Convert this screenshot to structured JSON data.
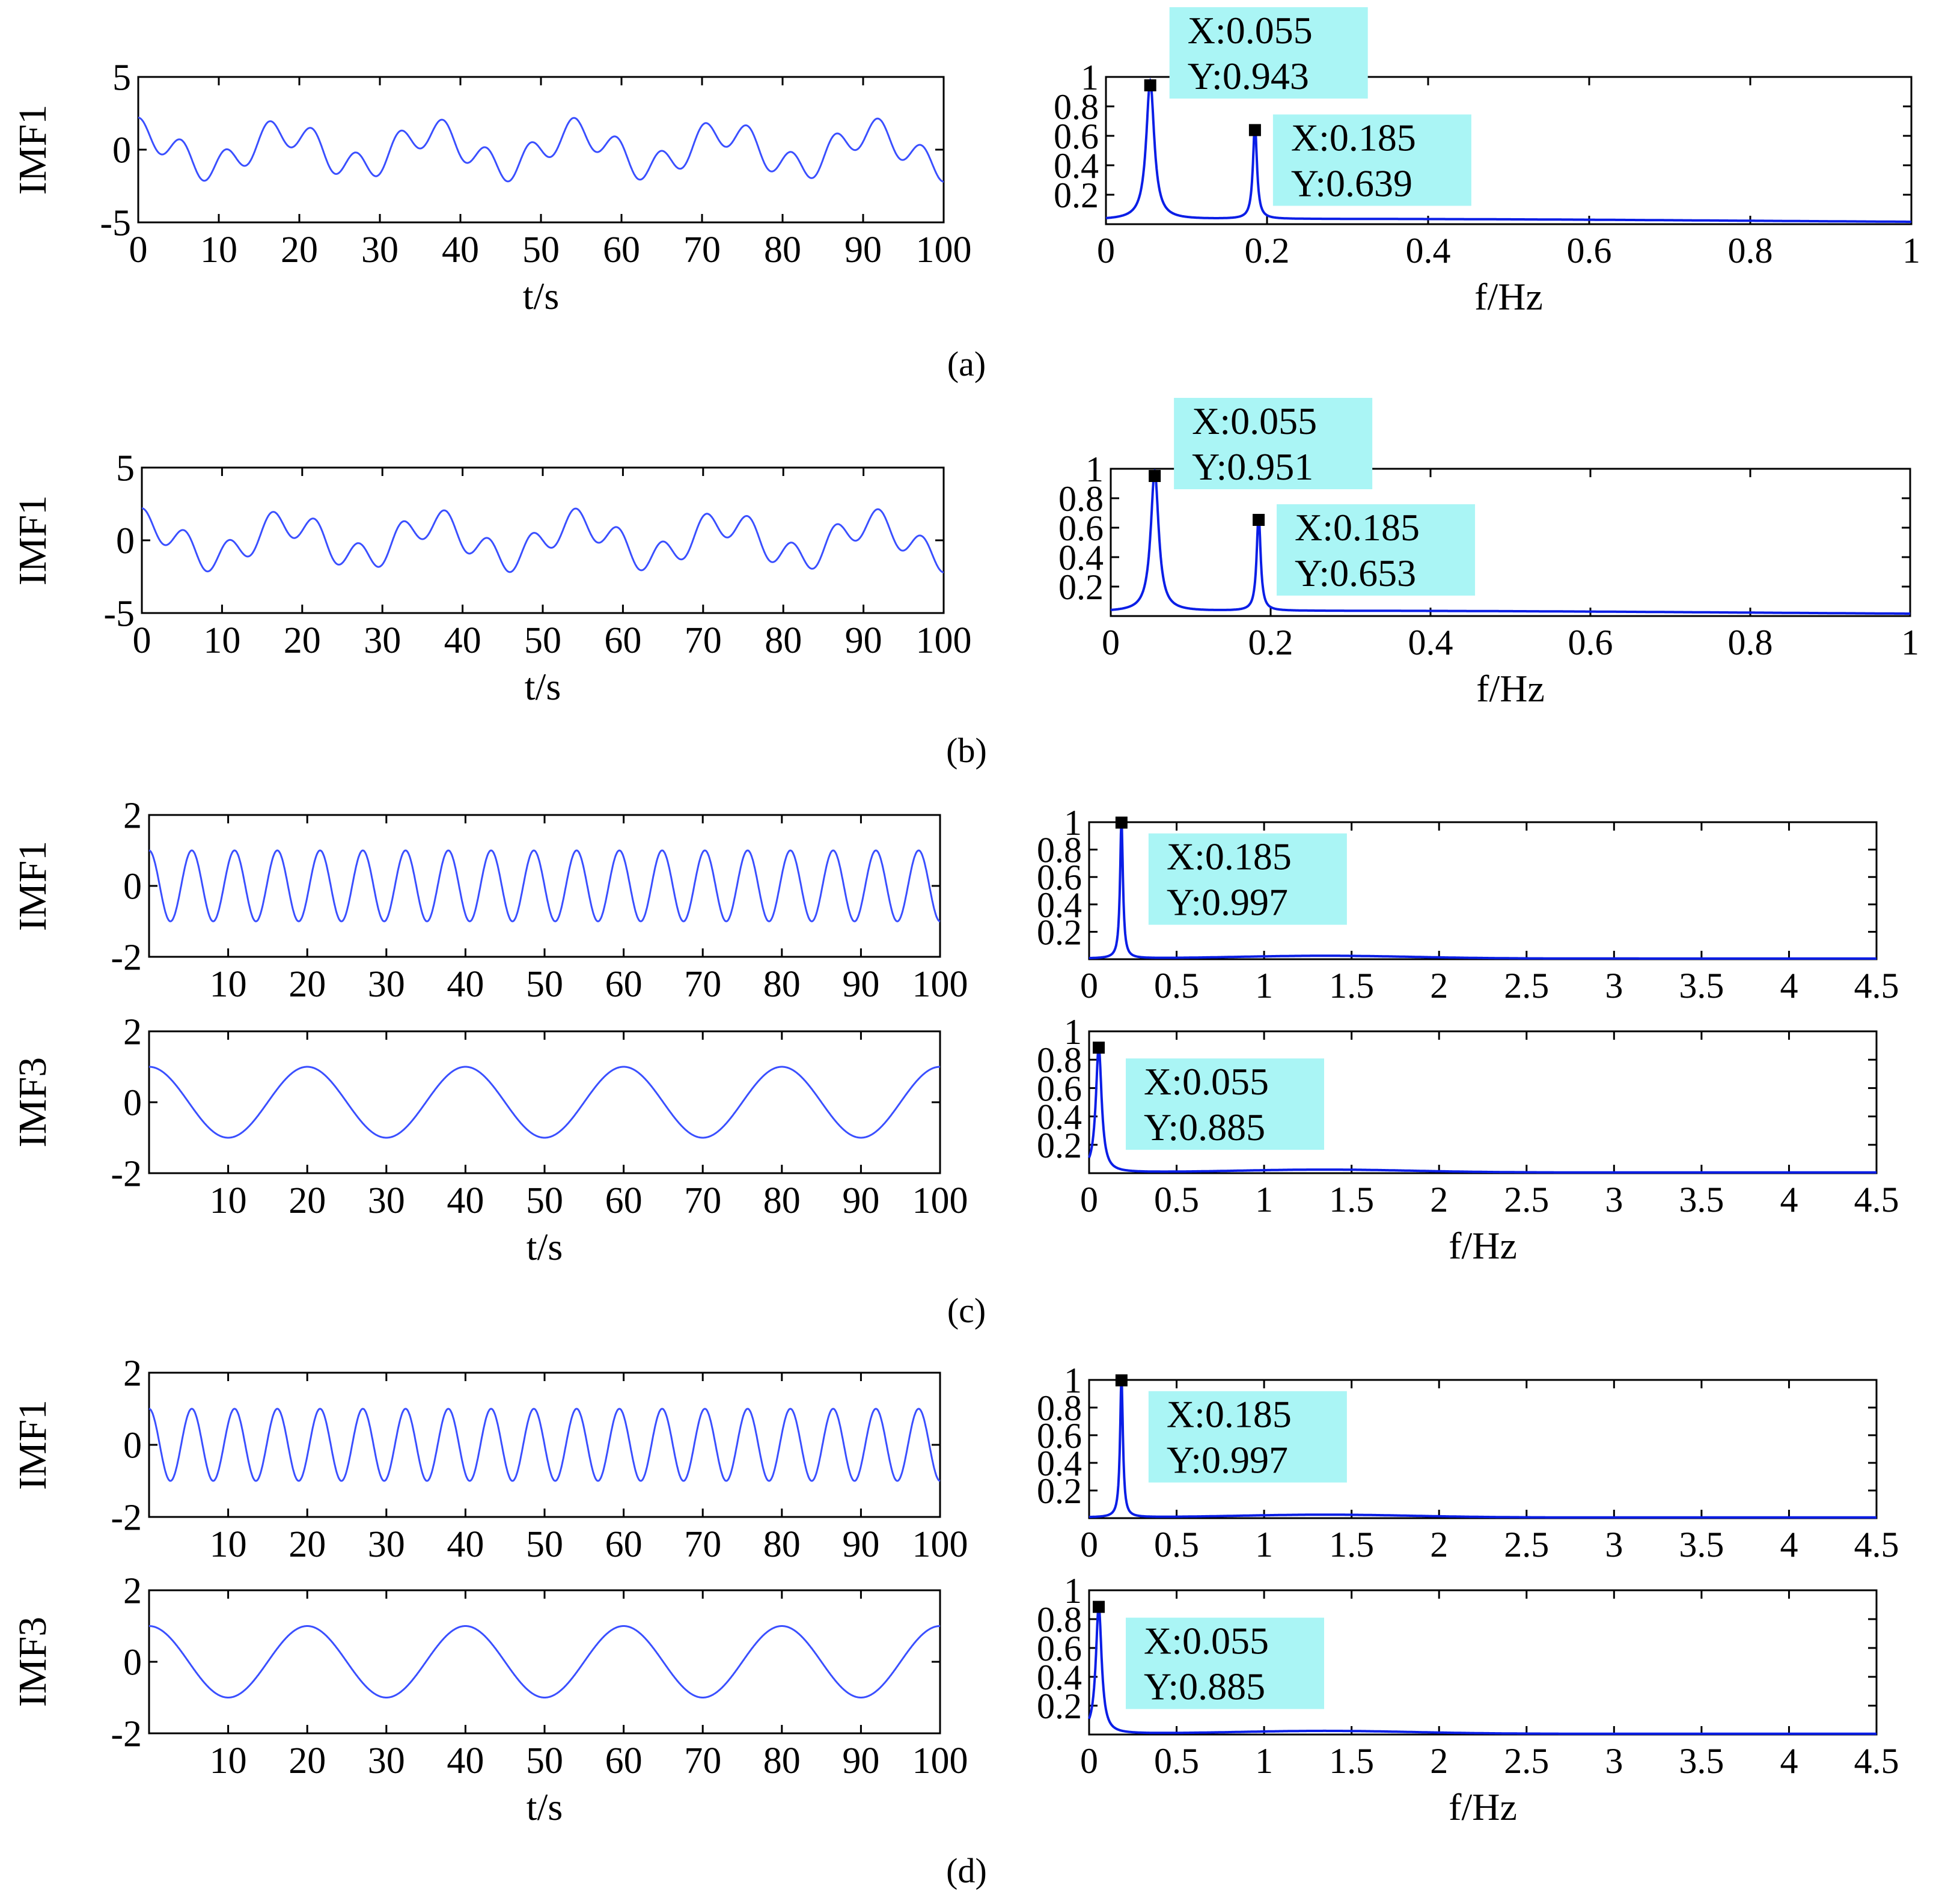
{
  "figure": {
    "panel_labels": [
      "(a)",
      "(b)",
      "(c)",
      "(d)"
    ]
  },
  "colors": {
    "signal": "#3a4fff",
    "spectrum": "#0a1ee6",
    "datatip_bg": "#aaf5f5",
    "datatip_marker": "#000000",
    "axis": "#000000"
  },
  "chart_data": [
    {
      "id": "a-time",
      "panel": "(a)",
      "type": "line",
      "ylabel": "IMF1",
      "xlabel": "t/s",
      "xlim": [
        0,
        100
      ],
      "ylim": [
        -5,
        5
      ],
      "xticks": [
        0,
        10,
        20,
        30,
        40,
        50,
        60,
        70,
        80,
        90,
        100
      ],
      "xtick_labels": [
        "0",
        "10",
        "20",
        "30",
        "40",
        "50",
        "60",
        "70",
        "80",
        "90",
        "100"
      ],
      "yticks": [
        -5,
        0,
        5
      ],
      "ytick_labels": [
        "-5",
        "0",
        "5"
      ],
      "series": [
        {
          "name": "IMF1",
          "components": [
            {
              "amp": 1.2,
              "freq": 0.055,
              "phase": 0
            },
            {
              "amp": 1.0,
              "freq": 0.185,
              "phase": 0
            }
          ]
        }
      ],
      "grid": false
    },
    {
      "id": "a-spec",
      "panel": "(a)",
      "type": "line",
      "xlabel": "f/Hz",
      "xlim": [
        0,
        1
      ],
      "ylim": [
        0,
        1
      ],
      "xticks": [
        0,
        0.2,
        0.4,
        0.6,
        0.8,
        1
      ],
      "xtick_labels": [
        "0",
        "0.2",
        "0.4",
        "0.6",
        "0.8",
        "1"
      ],
      "yticks": [
        0.2,
        0.4,
        0.6,
        0.8,
        1
      ],
      "ytick_labels": [
        "0.2",
        "0.4",
        "0.6",
        "0.8",
        "1"
      ],
      "peaks": [
        {
          "x": 0.055,
          "y": 0.943,
          "width": 0.006
        },
        {
          "x": 0.185,
          "y": 0.639,
          "width": 0.003
        }
      ],
      "baseline": 0.03,
      "datatips": [
        {
          "x": 0.055,
          "y": 0.943,
          "label_x": "X:0.055",
          "label_y": "Y:0.943"
        },
        {
          "x": 0.185,
          "y": 0.639,
          "label_x": "X:0.185",
          "label_y": "Y:0.639"
        }
      ]
    },
    {
      "id": "b-time",
      "panel": "(b)",
      "type": "line",
      "ylabel": "IMF1",
      "xlabel": "t/s",
      "xlim": [
        0,
        100
      ],
      "ylim": [
        -5,
        5
      ],
      "xticks": [
        0,
        10,
        20,
        30,
        40,
        50,
        60,
        70,
        80,
        90,
        100
      ],
      "xtick_labels": [
        "0",
        "10",
        "20",
        "30",
        "40",
        "50",
        "60",
        "70",
        "80",
        "90",
        "100"
      ],
      "yticks": [
        -5,
        0,
        5
      ],
      "ytick_labels": [
        "-5",
        "0",
        "5"
      ],
      "series": [
        {
          "name": "IMF1",
          "components": [
            {
              "amp": 1.2,
              "freq": 0.055,
              "phase": 0
            },
            {
              "amp": 1.0,
              "freq": 0.185,
              "phase": 0
            }
          ]
        }
      ],
      "grid": false
    },
    {
      "id": "b-spec",
      "panel": "(b)",
      "type": "line",
      "xlabel": "f/Hz",
      "xlim": [
        0,
        1
      ],
      "ylim": [
        0,
        1
      ],
      "xticks": [
        0,
        0.2,
        0.4,
        0.6,
        0.8,
        1
      ],
      "xtick_labels": [
        "0",
        "0.2",
        "0.4",
        "0.6",
        "0.8",
        "1"
      ],
      "yticks": [
        0.2,
        0.4,
        0.6,
        0.8,
        1
      ],
      "ytick_labels": [
        "0.2",
        "0.4",
        "0.6",
        "0.8",
        "1"
      ],
      "peaks": [
        {
          "x": 0.055,
          "y": 0.951,
          "width": 0.006
        },
        {
          "x": 0.185,
          "y": 0.653,
          "width": 0.003
        }
      ],
      "baseline": 0.03,
      "datatips": [
        {
          "x": 0.055,
          "y": 0.951,
          "label_x": "X:0.055",
          "label_y": "Y:0.951"
        },
        {
          "x": 0.185,
          "y": 0.653,
          "label_x": "X:0.185",
          "label_y": "Y:0.653"
        }
      ]
    },
    {
      "id": "c-time-1",
      "panel": "(c)",
      "type": "line",
      "ylabel": "IMF1",
      "xlabel": "",
      "xlim": [
        0,
        100
      ],
      "ylim": [
        -2,
        2
      ],
      "xticks": [
        10,
        20,
        30,
        40,
        50,
        60,
        70,
        80,
        90,
        100
      ],
      "xtick_labels": [
        "10",
        "20",
        "30",
        "40",
        "50",
        "60",
        "70",
        "80",
        "90",
        "100"
      ],
      "yticks": [
        -2,
        0,
        2
      ],
      "ytick_labels": [
        "-2",
        "0",
        "2"
      ],
      "series": [
        {
          "name": "IMF1",
          "components": [
            {
              "amp": 1.0,
              "freq": 0.185,
              "phase": 0
            }
          ]
        }
      ]
    },
    {
      "id": "c-spec-1",
      "panel": "(c)",
      "type": "line",
      "xlabel": "",
      "xlim": [
        0,
        4.5
      ],
      "ylim": [
        0,
        1
      ],
      "xticks": [
        0,
        0.5,
        1,
        1.5,
        2,
        2.5,
        3,
        3.5,
        4,
        4.5
      ],
      "xtick_labels": [
        "0",
        "0.5",
        "1",
        "1.5",
        "2",
        "2.5",
        "3",
        "3.5",
        "4",
        "4.5"
      ],
      "yticks": [
        0.2,
        0.4,
        0.6,
        0.8,
        1
      ],
      "ytick_labels": [
        "0.2",
        "0.4",
        "0.6",
        "0.8",
        "1"
      ],
      "peaks": [
        {
          "x": 0.185,
          "y": 0.997,
          "width": 0.01
        }
      ],
      "baseline": 0.02,
      "datatips": [
        {
          "x": 0.185,
          "y": 0.997,
          "label_x": "X:0.185",
          "label_y": "Y:0.997"
        }
      ]
    },
    {
      "id": "c-time-3",
      "panel": "(c)",
      "type": "line",
      "ylabel": "IMF3",
      "xlabel": "t/s",
      "xlim": [
        0,
        100
      ],
      "ylim": [
        -2,
        2
      ],
      "xticks": [
        10,
        20,
        30,
        40,
        50,
        60,
        70,
        80,
        90,
        100
      ],
      "xtick_labels": [
        "10",
        "20",
        "30",
        "40",
        "50",
        "60",
        "70",
        "80",
        "90",
        "100"
      ],
      "yticks": [
        -2,
        0,
        2
      ],
      "ytick_labels": [
        "-2",
        "0",
        "2"
      ],
      "series": [
        {
          "name": "IMF3",
          "components": [
            {
              "amp": 1.0,
              "freq": 0.05,
              "phase": 0
            }
          ]
        }
      ]
    },
    {
      "id": "c-spec-3",
      "panel": "(c)",
      "type": "line",
      "xlabel": "f/Hz",
      "xlim": [
        0,
        4.5
      ],
      "ylim": [
        0,
        1
      ],
      "xticks": [
        0,
        0.5,
        1,
        1.5,
        2,
        2.5,
        3,
        3.5,
        4,
        4.5
      ],
      "xtick_labels": [
        "0",
        "0.5",
        "1",
        "1.5",
        "2",
        "2.5",
        "3",
        "3.5",
        "4",
        "4.5"
      ],
      "yticks": [
        0.2,
        0.4,
        0.6,
        0.8,
        1
      ],
      "ytick_labels": [
        "0.2",
        "0.4",
        "0.6",
        "0.8",
        "1"
      ],
      "peaks": [
        {
          "x": 0.055,
          "y": 0.885,
          "width": 0.02
        }
      ],
      "baseline": 0.02,
      "datatips": [
        {
          "x": 0.055,
          "y": 0.885,
          "label_x": "X:0.055",
          "label_y": "Y:0.885"
        }
      ]
    },
    {
      "id": "d-time-1",
      "panel": "(d)",
      "type": "line",
      "ylabel": "IMF1",
      "xlabel": "",
      "xlim": [
        0,
        100
      ],
      "ylim": [
        -2,
        2
      ],
      "xticks": [
        10,
        20,
        30,
        40,
        50,
        60,
        70,
        80,
        90,
        100
      ],
      "xtick_labels": [
        "10",
        "20",
        "30",
        "40",
        "50",
        "60",
        "70",
        "80",
        "90",
        "100"
      ],
      "yticks": [
        -2,
        0,
        2
      ],
      "ytick_labels": [
        "-2",
        "0",
        "2"
      ],
      "series": [
        {
          "name": "IMF1",
          "components": [
            {
              "amp": 1.0,
              "freq": 0.185,
              "phase": 0
            }
          ]
        }
      ]
    },
    {
      "id": "d-spec-1",
      "panel": "(d)",
      "type": "line",
      "xlabel": "",
      "xlim": [
        0,
        4.5
      ],
      "ylim": [
        0,
        1
      ],
      "xticks": [
        0,
        0.5,
        1,
        1.5,
        2,
        2.5,
        3,
        3.5,
        4,
        4.5
      ],
      "xtick_labels": [
        "0",
        "0.5",
        "1",
        "1.5",
        "2",
        "2.5",
        "3",
        "3.5",
        "4",
        "4.5"
      ],
      "yticks": [
        0.2,
        0.4,
        0.6,
        0.8,
        1
      ],
      "ytick_labels": [
        "0.2",
        "0.4",
        "0.6",
        "0.8",
        "1"
      ],
      "peaks": [
        {
          "x": 0.185,
          "y": 0.997,
          "width": 0.01
        }
      ],
      "baseline": 0.02,
      "datatips": [
        {
          "x": 0.185,
          "y": 0.997,
          "label_x": "X:0.185",
          "label_y": "Y:0.997"
        }
      ]
    },
    {
      "id": "d-time-3",
      "panel": "(d)",
      "type": "line",
      "ylabel": "IMF3",
      "xlabel": "t/s",
      "xlim": [
        0,
        100
      ],
      "ylim": [
        -2,
        2
      ],
      "xticks": [
        10,
        20,
        30,
        40,
        50,
        60,
        70,
        80,
        90,
        100
      ],
      "xtick_labels": [
        "10",
        "20",
        "30",
        "40",
        "50",
        "60",
        "70",
        "80",
        "90",
        "100"
      ],
      "yticks": [
        -2,
        0,
        2
      ],
      "ytick_labels": [
        "-2",
        "0",
        "2"
      ],
      "series": [
        {
          "name": "IMF3",
          "components": [
            {
              "amp": 1.0,
              "freq": 0.05,
              "phase": 0
            }
          ]
        }
      ]
    },
    {
      "id": "d-spec-3",
      "panel": "(d)",
      "type": "line",
      "xlabel": "f/Hz",
      "xlim": [
        0,
        4.5
      ],
      "ylim": [
        0,
        1
      ],
      "xticks": [
        0,
        0.5,
        1,
        1.5,
        2,
        2.5,
        3,
        3.5,
        4,
        4.5
      ],
      "xtick_labels": [
        "0",
        "0.5",
        "1",
        "1.5",
        "2",
        "2.5",
        "3",
        "3.5",
        "4",
        "4.5"
      ],
      "yticks": [
        0.2,
        0.4,
        0.6,
        0.8,
        1
      ],
      "ytick_labels": [
        "0.2",
        "0.4",
        "0.6",
        "0.8",
        "1"
      ],
      "peaks": [
        {
          "x": 0.055,
          "y": 0.885,
          "width": 0.02
        }
      ],
      "baseline": 0.02,
      "datatips": [
        {
          "x": 0.055,
          "y": 0.885,
          "label_x": "X:0.055",
          "label_y": "Y:0.885"
        }
      ]
    }
  ]
}
